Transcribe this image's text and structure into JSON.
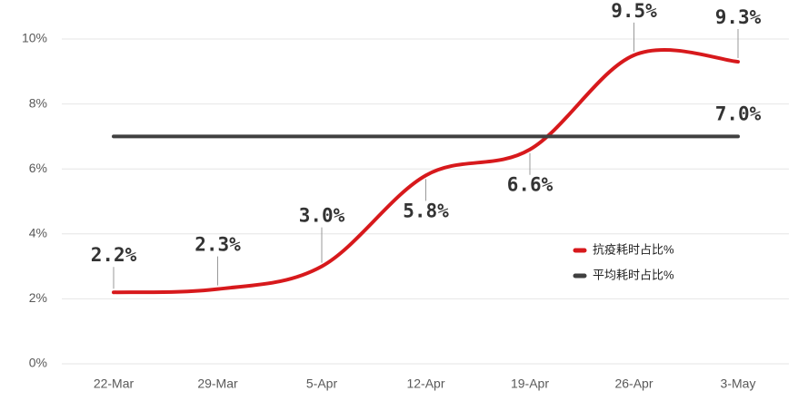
{
  "chart_data": {
    "type": "line",
    "categories": [
      "22-Mar",
      "29-Mar",
      "5-Apr",
      "12-Apr",
      "19-Apr",
      "26-Apr",
      "3-May"
    ],
    "series": [
      {
        "name": "抗疫耗时占比%",
        "color": "#d7191c",
        "values": [
          2.2,
          2.3,
          3.0,
          5.8,
          6.6,
          9.5,
          9.3
        ],
        "value_labels": [
          "2.2%",
          "2.3%",
          "3.0%",
          "5.8%",
          "6.6%",
          "9.5%",
          "9.3%"
        ],
        "smooth": true
      },
      {
        "name": "平均耗时占比%",
        "color": "#404040",
        "values": [
          7.0,
          7.0,
          7.0,
          7.0,
          7.0,
          7.0,
          7.0
        ],
        "value_labels": [
          null,
          null,
          null,
          null,
          null,
          null,
          "7.0%"
        ],
        "smooth": false
      }
    ],
    "ylim": [
      0,
      10
    ],
    "yticks": [
      {
        "value": 0,
        "label": "0%"
      },
      {
        "value": 2,
        "label": "2%"
      },
      {
        "value": 4,
        "label": "4%"
      },
      {
        "value": 6,
        "label": "6%"
      },
      {
        "value": 8,
        "label": "8%"
      },
      {
        "value": 10,
        "label": "10%"
      }
    ],
    "grid": true,
    "legend": "right"
  }
}
